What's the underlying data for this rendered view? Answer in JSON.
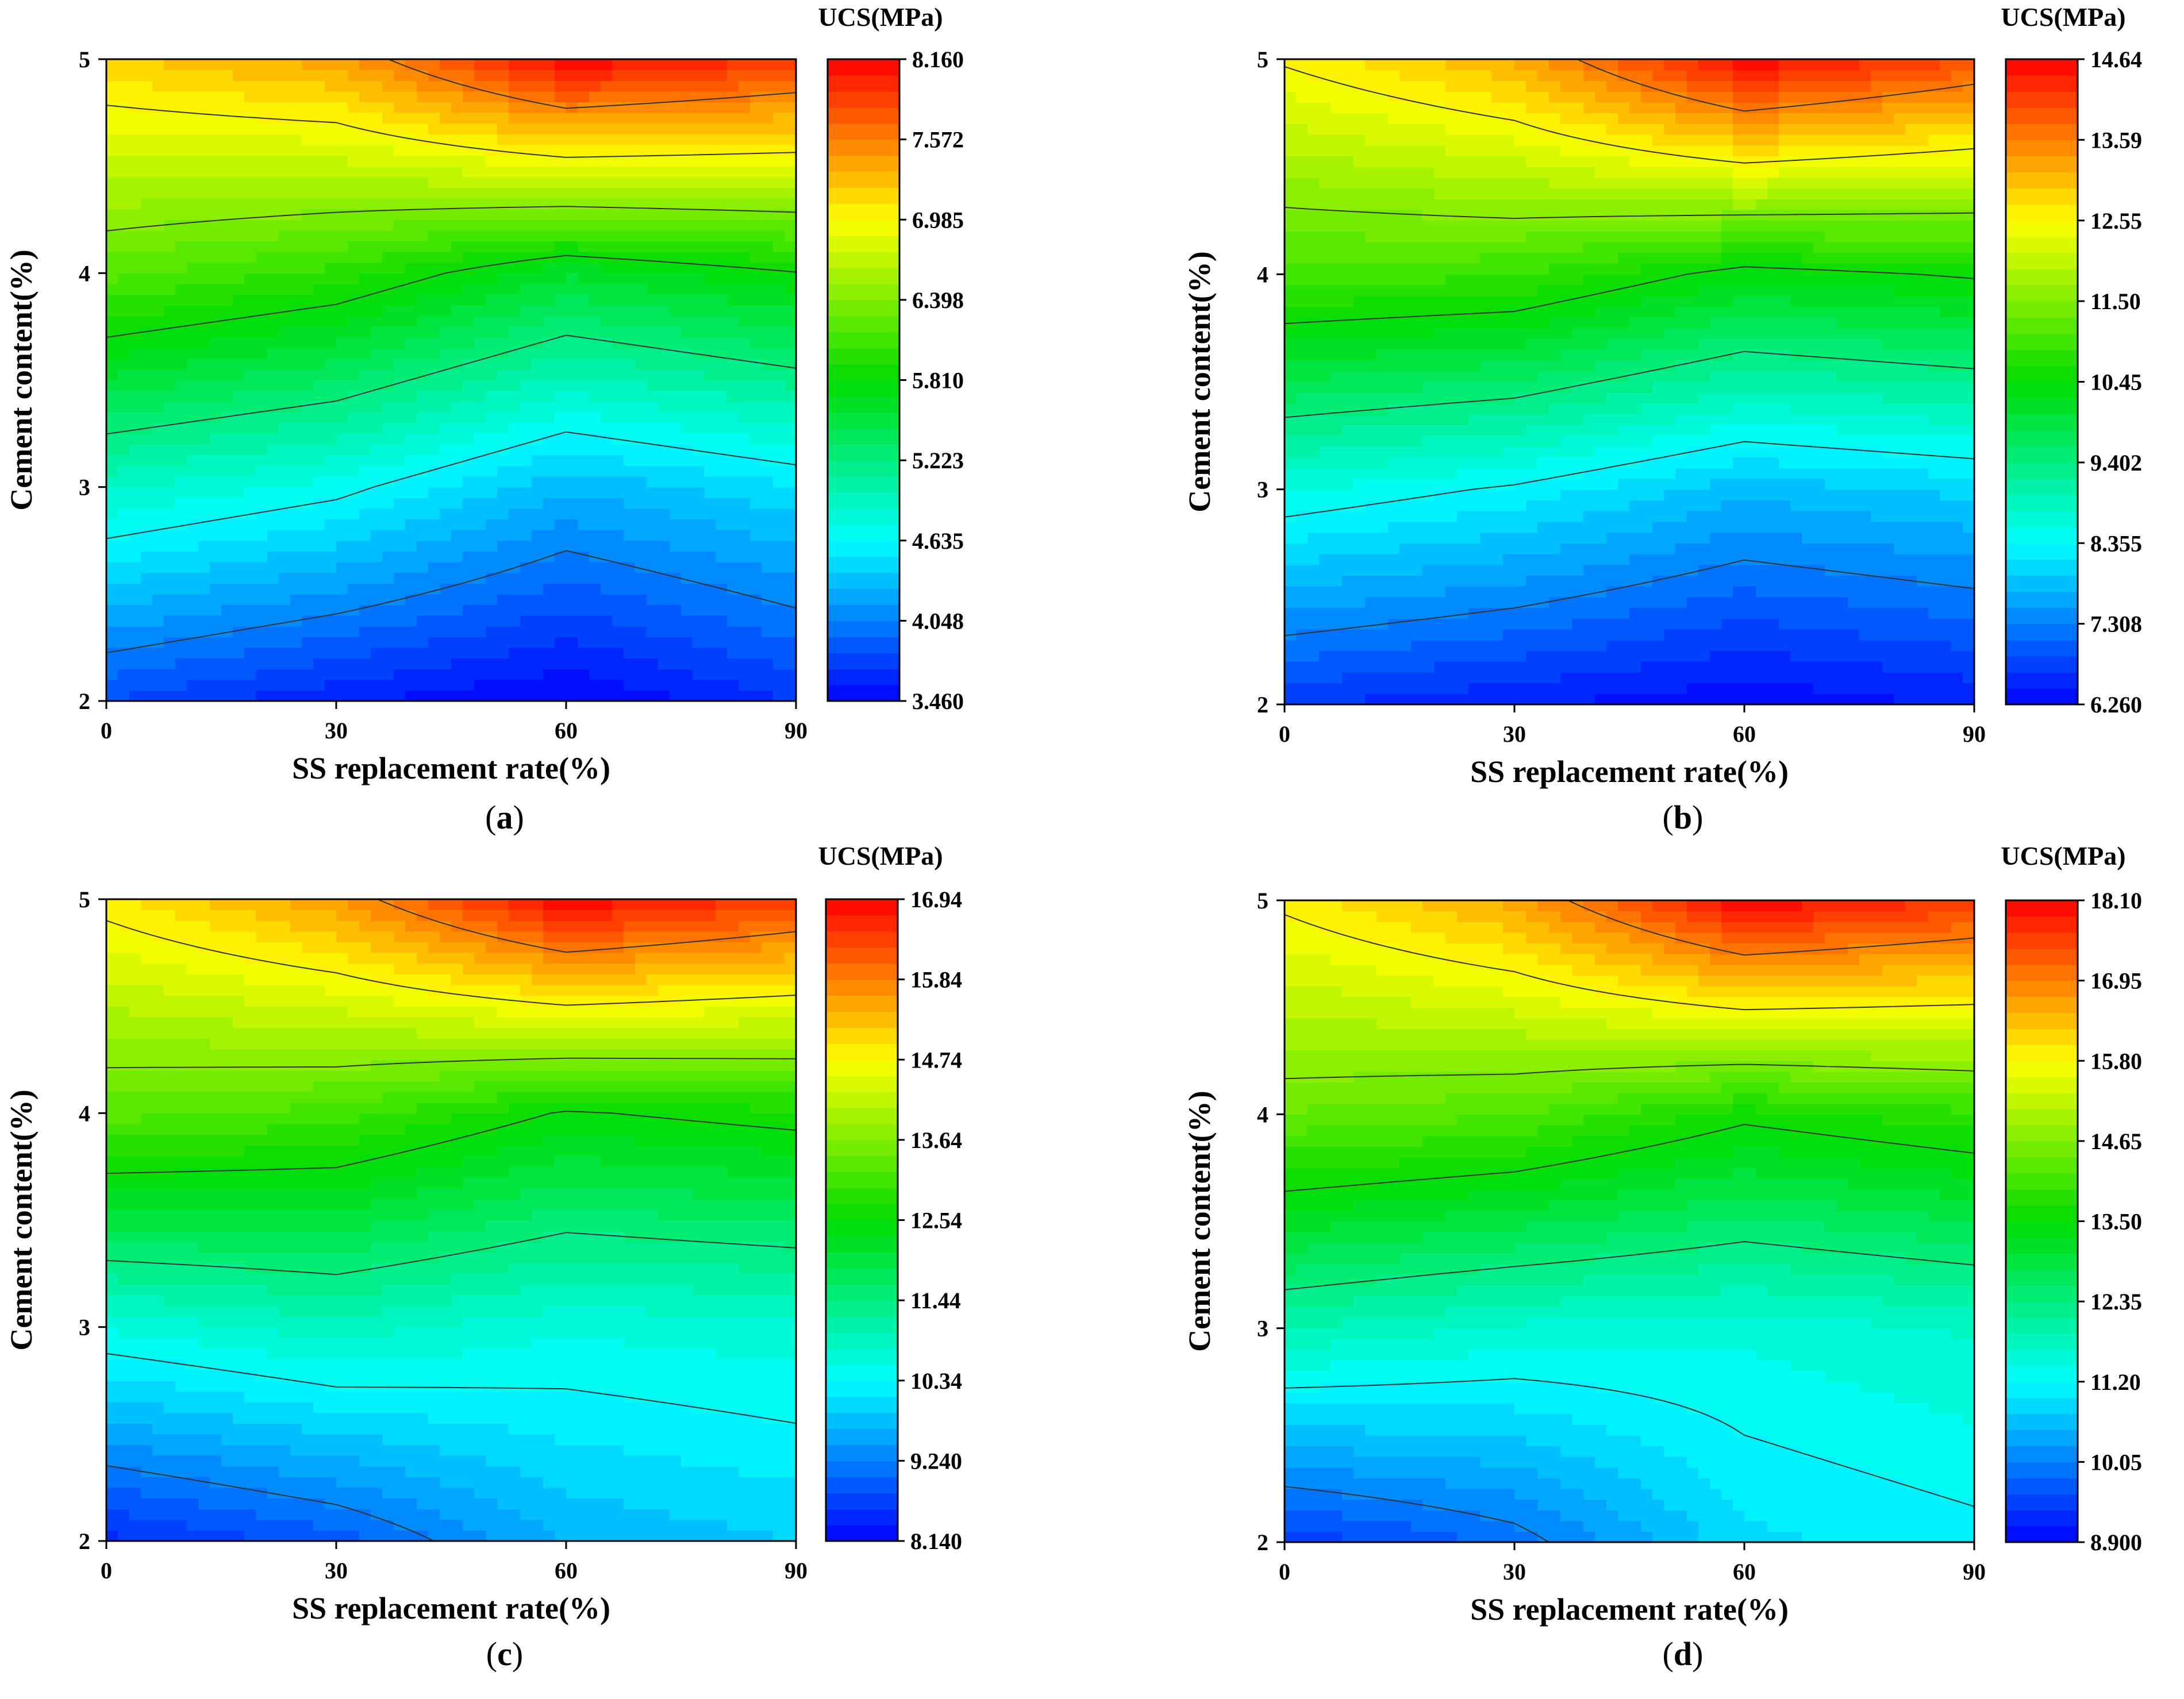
{
  "chart_data": [
    {
      "panel": "a",
      "type": "contour",
      "caption_label": "a",
      "xlabel": "SS replacement rate(%)",
      "ylabel": "Cement content(%)",
      "x": [
        0,
        30,
        60,
        90
      ],
      "y": [
        2,
        3,
        4,
        5
      ],
      "xlim": [
        0,
        90
      ],
      "ylim": [
        2,
        5
      ],
      "x_ticks": [
        "0",
        "30",
        "60",
        "90"
      ],
      "y_ticks": [
        "2",
        "3",
        "4",
        "5"
      ],
      "colorbar": {
        "title": "UCS(MPa)",
        "min": 3.46,
        "max": 8.16,
        "ticks": [
          "3.460",
          "4.048",
          "4.635",
          "5.223",
          "5.810",
          "6.398",
          "6.985",
          "7.572",
          "8.160"
        ]
      },
      "z_rows_by_cement": [
        [
          3.8,
          3.6,
          3.45,
          3.7
        ],
        [
          4.9,
          4.7,
          4.3,
          4.5
        ],
        [
          6.2,
          6.0,
          5.6,
          5.8
        ],
        [
          7.2,
          7.4,
          8.16,
          7.9
        ]
      ]
    },
    {
      "panel": "b",
      "type": "contour",
      "caption_label": "b",
      "xlabel": "SS replacement rate(%)",
      "ylabel": "Cement content(%)",
      "x": [
        0,
        30,
        60,
        90
      ],
      "y": [
        2,
        3,
        4,
        5
      ],
      "xlim": [
        0,
        90
      ],
      "ylim": [
        2,
        5
      ],
      "x_ticks": [
        "0",
        "30",
        "60",
        "90"
      ],
      "y_ticks": [
        "2",
        "3",
        "4",
        "5"
      ],
      "colorbar": {
        "title": "UCS(MPa)",
        "min": 6.26,
        "max": 14.64,
        "ticks": [
          "6.260",
          "7.308",
          "8.355",
          "9.402",
          "10.45",
          "11.50",
          "12.55",
          "13.59",
          "14.64"
        ]
      },
      "z_rows_by_cement": [
        [
          6.7,
          6.5,
          6.3,
          6.5
        ],
        [
          8.6,
          8.3,
          7.8,
          8.0
        ],
        [
          11.0,
          10.9,
          10.3,
          10.5
        ],
        [
          12.6,
          13.2,
          14.64,
          14.0
        ]
      ]
    },
    {
      "panel": "c",
      "type": "contour",
      "caption_label": "c",
      "xlabel": "SS replacement rate(%)",
      "ylabel": "Cement content(%)",
      "x": [
        0,
        30,
        60,
        90
      ],
      "y": [
        2,
        3,
        4,
        5
      ],
      "xlim": [
        0,
        90
      ],
      "ylim": [
        2,
        5
      ],
      "x_ticks": [
        "0",
        "30",
        "60",
        "90"
      ],
      "y_ticks": [
        "2",
        "3",
        "4",
        "5"
      ],
      "colorbar": {
        "title": "UCS(MPa)",
        "min": 8.14,
        "max": 16.94,
        "ticks": [
          "8.140",
          "9.240",
          "10.34",
          "11.44",
          "12.54",
          "13.64",
          "14.74",
          "15.84",
          "16.94"
        ]
      },
      "z_rows_by_cement": [
        [
          8.5,
          8.9,
          9.7,
          9.9
        ],
        [
          10.6,
          10.9,
          10.6,
          10.7
        ],
        [
          13.3,
          13.1,
          12.5,
          12.7
        ],
        [
          14.9,
          15.6,
          16.94,
          16.4
        ]
      ]
    },
    {
      "panel": "d",
      "type": "contour",
      "caption_label": "d",
      "xlabel": "SS replacement rate(%)",
      "ylabel": "Cement content(%)",
      "x": [
        0,
        30,
        60,
        90
      ],
      "y": [
        2,
        3,
        4,
        5
      ],
      "xlim": [
        0,
        90
      ],
      "ylim": [
        2,
        5
      ],
      "x_ticks": [
        "0",
        "30",
        "60",
        "90"
      ],
      "y_ticks": [
        "2",
        "3",
        "4",
        "5"
      ],
      "colorbar": {
        "title": "UCS(MPa)",
        "min": 8.9,
        "max": 18.1,
        "ticks": [
          "8.900",
          "10.05",
          "11.20",
          "12.35",
          "13.50",
          "14.65",
          "15.80",
          "16.95",
          "18.10"
        ]
      },
      "z_rows_by_cement": [
        [
          9.4,
          9.9,
          10.9,
          11.1
        ],
        [
          11.9,
          11.6,
          11.5,
          11.7
        ],
        [
          14.4,
          14.2,
          13.6,
          13.9
        ],
        [
          15.9,
          16.6,
          18.1,
          17.6
        ]
      ]
    }
  ]
}
